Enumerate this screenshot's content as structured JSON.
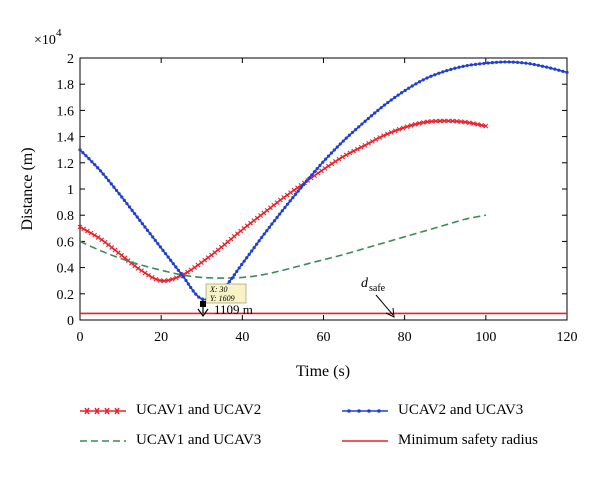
{
  "chart_data": {
    "type": "line",
    "xlabel": "Time (s)",
    "ylabel": "Distance (m)",
    "y_exponent_label": "×10",
    "y_exponent_power": "4",
    "xlim": [
      0,
      120
    ],
    "ylim": [
      0,
      20000
    ],
    "x_ticks": [
      "0",
      "20",
      "40",
      "60",
      "80",
      "100",
      "120"
    ],
    "y_ticks": [
      "0",
      "0.2",
      "0.4",
      "0.6",
      "0.8",
      "1",
      "1.2",
      "1.4",
      "1.6",
      "1.8",
      "2"
    ],
    "grid": false,
    "legend_position": "bottom",
    "series": [
      {
        "name": "UCAV1 and UCAV2",
        "color": "#e8202a",
        "style": "solid-x-markers",
        "x": [
          0,
          5,
          10,
          15,
          20,
          25,
          30,
          35,
          40,
          45,
          50,
          55,
          60,
          65,
          70,
          75,
          80,
          85,
          90,
          95,
          100
        ],
        "y": [
          7100,
          6200,
          5000,
          3800,
          3000,
          3400,
          4400,
          5600,
          6900,
          8100,
          9300,
          10400,
          11500,
          12500,
          13300,
          14100,
          14700,
          15100,
          15200,
          15100,
          14800
        ]
      },
      {
        "name": "UCAV1 and UCAV3",
        "color": "#3a8a5a",
        "style": "dashed",
        "x": [
          0,
          5,
          10,
          15,
          20,
          25,
          30,
          35,
          40,
          45,
          50,
          55,
          60,
          65,
          70,
          75,
          80,
          85,
          90,
          95,
          100
        ],
        "y": [
          6000,
          5300,
          4700,
          4200,
          3800,
          3450,
          3250,
          3200,
          3250,
          3450,
          3800,
          4200,
          4600,
          5000,
          5450,
          5900,
          6350,
          6800,
          7250,
          7700,
          8000
        ]
      },
      {
        "name": "UCAV2 and UCAV3",
        "color": "#1f3fd4",
        "style": "solid-dot-markers",
        "x": [
          0,
          5,
          10,
          15,
          20,
          25,
          30,
          35,
          40,
          45,
          50,
          55,
          60,
          65,
          70,
          75,
          80,
          85,
          90,
          95,
          100,
          105,
          110,
          115,
          120
        ],
        "y": [
          13000,
          11400,
          9500,
          7500,
          5500,
          3500,
          1609,
          2300,
          4300,
          6400,
          8400,
          10300,
          12100,
          13700,
          15100,
          16400,
          17500,
          18400,
          19000,
          19400,
          19600,
          19700,
          19600,
          19300,
          18900
        ]
      },
      {
        "name": "Minimum safety radius",
        "color": "#e8202a",
        "style": "solid",
        "x": [
          0,
          120
        ],
        "y": [
          500,
          500
        ]
      }
    ],
    "annotations": {
      "datatip_x": "X: 30",
      "datatip_y": "Y: 1609",
      "min_label": "1109 m",
      "dsafe_main": "d",
      "dsafe_sub": "safe"
    }
  }
}
